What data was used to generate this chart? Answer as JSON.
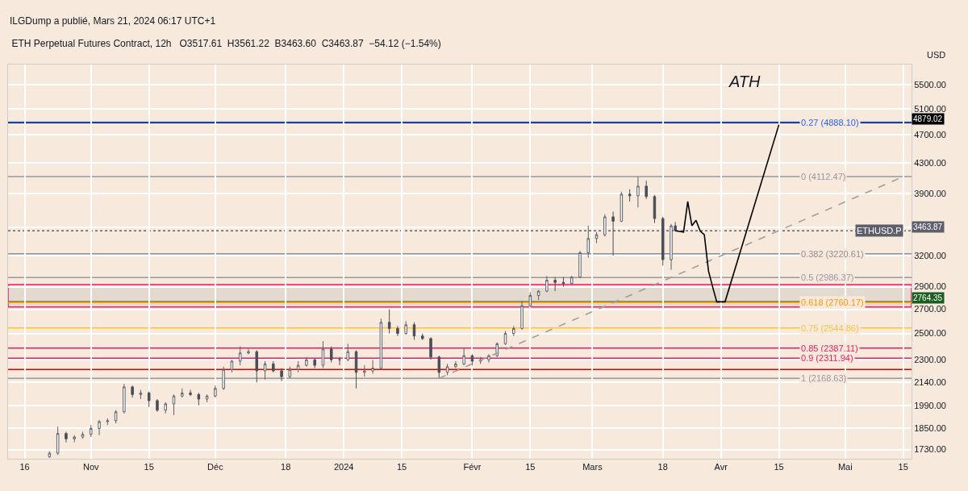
{
  "chart_data": {
    "type": "candlestick",
    "title": "ETH Perpetual Futures Contract, 12h",
    "subtitle": "O3517.61  H3561.22  B3463.60  C3463.87  −54.12 (−1.54%)",
    "ylabel": "USD",
    "x": [
      "2023-10-22",
      "2023-10-24",
      "2023-10-26",
      "2023-10-28",
      "2023-10-30",
      "2023-11-01",
      "2023-11-03",
      "2023-11-05",
      "2023-11-07",
      "2023-11-09",
      "2023-11-11",
      "2023-11-13",
      "2023-11-15",
      "2023-11-17",
      "2023-11-19",
      "2023-11-21",
      "2023-11-23",
      "2023-11-25",
      "2023-11-27",
      "2023-11-29",
      "2023-12-01",
      "2023-12-03",
      "2023-12-05",
      "2023-12-07",
      "2023-12-09",
      "2023-12-11",
      "2023-12-13",
      "2023-12-15",
      "2023-12-17",
      "2023-12-19",
      "2023-12-21",
      "2023-12-23",
      "2023-12-25",
      "2023-12-27",
      "2023-12-29",
      "2023-12-31",
      "2024-01-02",
      "2024-01-04",
      "2024-01-06",
      "2024-01-08",
      "2024-01-10",
      "2024-01-12",
      "2024-01-14",
      "2024-01-16",
      "2024-01-18",
      "2024-01-20",
      "2024-01-22",
      "2024-01-24",
      "2024-01-26",
      "2024-01-28",
      "2024-01-30",
      "2024-02-01",
      "2024-02-03",
      "2024-02-05",
      "2024-02-07",
      "2024-02-09",
      "2024-02-11",
      "2024-02-13",
      "2024-02-15",
      "2024-02-17",
      "2024-02-19",
      "2024-02-21",
      "2024-02-23",
      "2024-02-25",
      "2024-02-27",
      "2024-02-29",
      "2024-03-02",
      "2024-03-04",
      "2024-03-06",
      "2024-03-08",
      "2024-03-10",
      "2024-03-12",
      "2024-03-14",
      "2024-03-16",
      "2024-03-18",
      "2024-03-20",
      "2024-03-21"
    ],
    "ohlc": [
      [
        1690,
        1720,
        1685,
        1710
      ],
      [
        1710,
        1860,
        1700,
        1820
      ],
      [
        1820,
        1830,
        1770,
        1790
      ],
      [
        1790,
        1810,
        1770,
        1800
      ],
      [
        1800,
        1830,
        1790,
        1815
      ],
      [
        1815,
        1870,
        1800,
        1850
      ],
      [
        1850,
        1900,
        1810,
        1890
      ],
      [
        1890,
        1910,
        1870,
        1895
      ],
      [
        1895,
        1960,
        1880,
        1950
      ],
      [
        1950,
        2130,
        1940,
        2110
      ],
      [
        2110,
        2120,
        2040,
        2060
      ],
      [
        2060,
        2090,
        2030,
        2070
      ],
      [
        2070,
        2080,
        1980,
        2020
      ],
      [
        2020,
        2030,
        1950,
        1960
      ],
      [
        1960,
        2010,
        1940,
        2000
      ],
      [
        2000,
        2060,
        1930,
        2050
      ],
      [
        2050,
        2100,
        2040,
        2070
      ],
      [
        2070,
        2090,
        2050,
        2060
      ],
      [
        2060,
        2070,
        1990,
        2030
      ],
      [
        2030,
        2060,
        2010,
        2050
      ],
      [
        2050,
        2120,
        2040,
        2100
      ],
      [
        2100,
        2250,
        2090,
        2230
      ],
      [
        2230,
        2300,
        2210,
        2290
      ],
      [
        2290,
        2400,
        2260,
        2350
      ],
      [
        2350,
        2380,
        2340,
        2360
      ],
      [
        2360,
        2370,
        2140,
        2220
      ],
      [
        2220,
        2290,
        2160,
        2270
      ],
      [
        2270,
        2290,
        2210,
        2220
      ],
      [
        2220,
        2240,
        2150,
        2180
      ],
      [
        2180,
        2250,
        2170,
        2230
      ],
      [
        2230,
        2290,
        2210,
        2260
      ],
      [
        2260,
        2320,
        2250,
        2300
      ],
      [
        2300,
        2310,
        2240,
        2260
      ],
      [
        2260,
        2440,
        2240,
        2380
      ],
      [
        2380,
        2400,
        2280,
        2300
      ],
      [
        2300,
        2320,
        2260,
        2300
      ],
      [
        2300,
        2420,
        2290,
        2360
      ],
      [
        2360,
        2370,
        2100,
        2210
      ],
      [
        2210,
        2260,
        2180,
        2220
      ],
      [
        2220,
        2300,
        2200,
        2240
      ],
      [
        2240,
        2620,
        2230,
        2590
      ],
      [
        2590,
        2700,
        2500,
        2540
      ],
      [
        2540,
        2560,
        2480,
        2500
      ],
      [
        2500,
        2600,
        2490,
        2570
      ],
      [
        2570,
        2590,
        2450,
        2480
      ],
      [
        2480,
        2500,
        2450,
        2460
      ],
      [
        2460,
        2470,
        2300,
        2320
      ],
      [
        2320,
        2330,
        2170,
        2210
      ],
      [
        2210,
        2270,
        2190,
        2250
      ],
      [
        2250,
        2290,
        2240,
        2270
      ],
      [
        2270,
        2390,
        2260,
        2330
      ],
      [
        2330,
        2340,
        2260,
        2290
      ],
      [
        2290,
        2320,
        2270,
        2300
      ],
      [
        2300,
        2340,
        2280,
        2330
      ],
      [
        2330,
        2430,
        2320,
        2420
      ],
      [
        2420,
        2520,
        2410,
        2500
      ],
      [
        2500,
        2560,
        2480,
        2540
      ],
      [
        2540,
        2770,
        2530,
        2730
      ],
      [
        2730,
        2850,
        2720,
        2820
      ],
      [
        2820,
        2870,
        2780,
        2860
      ],
      [
        2860,
        3000,
        2850,
        2960
      ],
      [
        2960,
        2990,
        2860,
        2940
      ],
      [
        2940,
        2990,
        2900,
        2930
      ],
      [
        2930,
        3000,
        2920,
        2990
      ],
      [
        2990,
        3250,
        2980,
        3230
      ],
      [
        3230,
        3520,
        3180,
        3380
      ],
      [
        3380,
        3450,
        3330,
        3420
      ],
      [
        3420,
        3650,
        3400,
        3620
      ],
      [
        3620,
        3680,
        3200,
        3570
      ],
      [
        3570,
        3920,
        3560,
        3890
      ],
      [
        3890,
        3950,
        3800,
        3870
      ],
      [
        3870,
        4110,
        3730,
        3990
      ],
      [
        3990,
        4060,
        3830,
        3860
      ],
      [
        3860,
        3880,
        3550,
        3600
      ],
      [
        3600,
        3620,
        3100,
        3160
      ],
      [
        3160,
        3540,
        3060,
        3517.61
      ],
      [
        3517.61,
        3561.22,
        3463.6,
        3463.87
      ]
    ],
    "series": [
      {
        "type": "line",
        "color": "#9e9e9e",
        "line_style": "dashed",
        "x": [
          "2024-01-24",
          "2024-05-15"
        ],
        "values": [
          2168.63,
          4112.47
        ]
      },
      {
        "type": "line",
        "color": "#000000",
        "line_style": "solid",
        "x": [
          "2024-03-21",
          "2024-03-23",
          "2024-03-24",
          "2024-03-25",
          "2024-03-26",
          "2024-03-27",
          "2024-03-28",
          "2024-03-29",
          "2024-03-30",
          "2024-03-31",
          "2024-04-02",
          "2024-04-15"
        ],
        "values": [
          3463.87,
          3450,
          3800,
          3520,
          3580,
          3460,
          3420,
          3050,
          2900,
          2764.35,
          2764.35,
          4850
        ]
      }
    ],
    "ref_lines": [
      {
        "axis": "y",
        "value": 4879.02,
        "label": "4879.02",
        "color": "#000000"
      },
      {
        "axis": "y",
        "value": 4888.1,
        "color": "#2962ff"
      },
      {
        "axis": "y",
        "value": 4112.47,
        "color": "#9598a1"
      },
      {
        "axis": "y",
        "value": 3463.87,
        "label": "3463.87",
        "color": "#5d606b",
        "line_style": "dotted"
      },
      {
        "axis": "y",
        "value": 3220.61,
        "color": "#8c8f98"
      },
      {
        "axis": "y",
        "value": 2986.37,
        "color": "#9598a1"
      },
      {
        "axis": "y",
        "value": 2764.35,
        "label": "2764.35",
        "color": "#1b5e20"
      },
      {
        "axis": "y",
        "value": 2760.17,
        "color": "#ff9800"
      },
      {
        "axis": "y",
        "value": 2544.86,
        "color": "#f5c542"
      },
      {
        "axis": "y",
        "value": 2387.11,
        "color": "#e91e63"
      },
      {
        "axis": "y",
        "value": 2311.94,
        "color": "#e91e63"
      },
      {
        "axis": "y",
        "value": 2230,
        "color": "#e00000"
      },
      {
        "axis": "y",
        "value": 2168.63,
        "color": "#9598a1"
      }
    ],
    "bands": [
      {
        "axis": "y",
        "from": 2720,
        "to": 2920,
        "color": "#e91e63"
      }
    ],
    "annotations": [
      "ILGDump a publié, Mars 21, 2024 06:17 UTC+1",
      {
        "text": "0.27 (4888.10)",
        "x": "2024-04-20",
        "y": 4888.1
      },
      {
        "text": "0 (4112.47)",
        "x": "2024-04-20",
        "y": 4112.47
      },
      {
        "text": "0.382 (3220.61)",
        "x": "2024-04-20",
        "y": 3220.61
      },
      {
        "text": "0.5 (2986.37)",
        "x": "2024-04-20",
        "y": 2986.37
      },
      {
        "text": "0.618 (2760.17)",
        "x": "2024-04-20",
        "y": 2760.17
      },
      {
        "text": "0.75 (2544.86)",
        "x": "2024-04-20",
        "y": 2544.86
      },
      {
        "text": "0.85 (2387.11)",
        "x": "2024-04-20",
        "y": 2387.11
      },
      {
        "text": "0.9 (2311.94)",
        "x": "2024-04-20",
        "y": 2311.94
      },
      {
        "text": "1 (2168.63)",
        "x": "2024-04-20",
        "y": 2168.63
      },
      "ATH",
      {
        "text": "ETHUSD.P",
        "x": "2024-05-15",
        "y": 3463.87
      }
    ],
    "xlim": [
      "2023-10-12",
      "2024-05-17"
    ],
    "xticks": [
      {
        "value": "2023-10-16",
        "label": "16"
      },
      {
        "value": "2023-11-01",
        "label": "Nov"
      },
      {
        "value": "2023-11-15",
        "label": "15"
      },
      {
        "value": "2023-12-01",
        "label": "Déc"
      },
      {
        "value": "2023-12-18",
        "label": "18"
      },
      {
        "value": "2024-01-01",
        "label": "2024"
      },
      {
        "value": "2024-01-15",
        "label": "15"
      },
      {
        "value": "2024-02-01",
        "label": "Févr"
      },
      {
        "value": "2024-02-15",
        "label": "15"
      },
      {
        "value": "2024-03-01",
        "label": "Mars"
      },
      {
        "value": "2024-03-18",
        "label": "18"
      },
      {
        "value": "2024-04-01",
        "label": "Avr"
      },
      {
        "value": "2024-04-15",
        "label": "15"
      },
      {
        "value": "2024-05-01",
        "label": "Mai"
      },
      {
        "value": "2024-05-15",
        "label": "15"
      }
    ],
    "ylim": [
      1680,
      5870
    ],
    "yticks": [
      {
        "value": 1730,
        "label": "1730.00"
      },
      {
        "value": 1850,
        "label": "1850.00"
      },
      {
        "value": 1990,
        "label": "1990.00"
      },
      {
        "value": 2140,
        "label": "2140.00"
      },
      {
        "value": 2300,
        "label": "2300.00"
      },
      {
        "value": 2500,
        "label": "2500.00"
      },
      {
        "value": 2700,
        "label": "2700.00"
      },
      {
        "value": 2900,
        "label": "2900.00"
      },
      {
        "value": 3200,
        "label": "3200.00"
      },
      {
        "value": 3500,
        "label": null
      },
      {
        "value": 3900,
        "label": "3900.00"
      },
      {
        "value": 4300,
        "label": "4300.00"
      },
      {
        "value": 4700,
        "label": "4700.00"
      },
      {
        "value": 5100,
        "label": "5100.00"
      },
      {
        "value": 5500,
        "label": "5500.00"
      }
    ],
    "log": true,
    "grid": true
  }
}
